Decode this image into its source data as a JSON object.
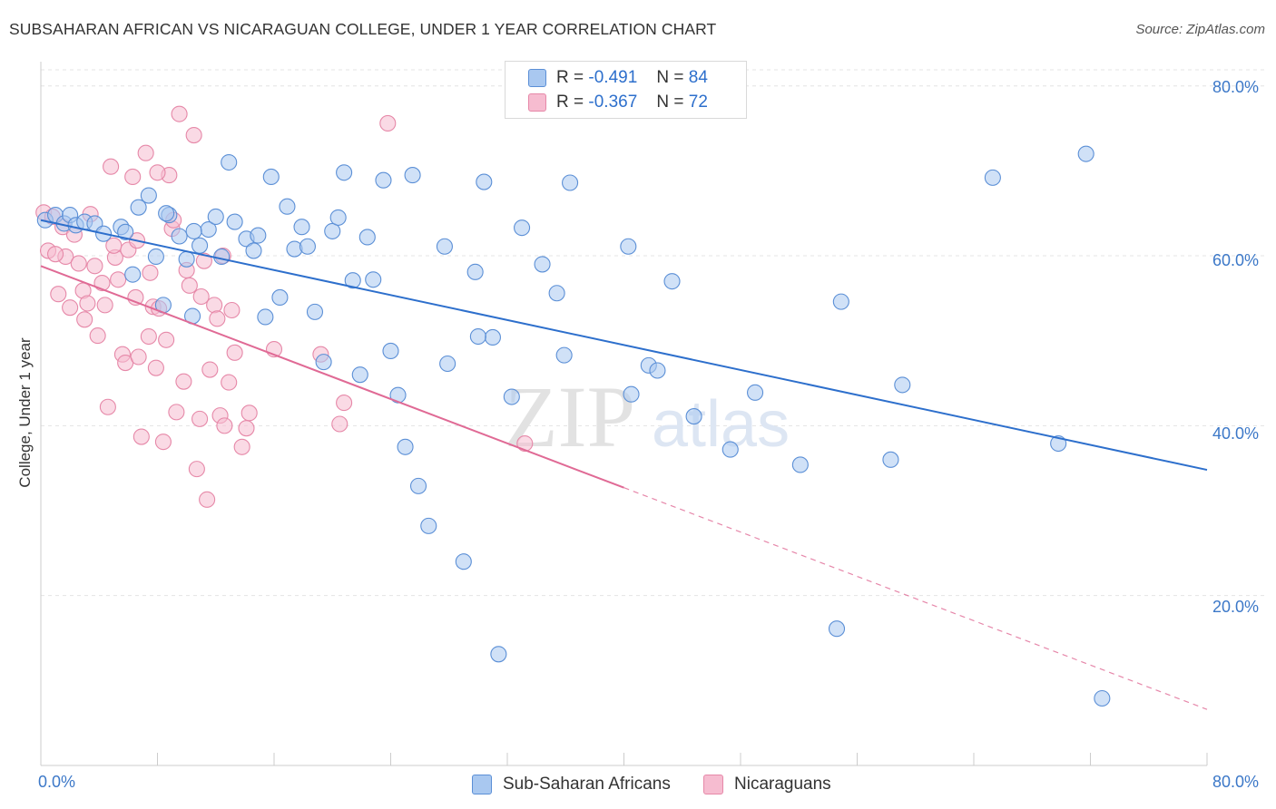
{
  "title": "SUBSAHARAN AFRICAN VS NICARAGUAN COLLEGE, UNDER 1 YEAR CORRELATION CHART",
  "source": "Source: ZipAtlas.com",
  "watermark": "ZIPatlas",
  "colors": {
    "blue_fill": "#a9c8f0",
    "blue_stroke": "#5b8fd6",
    "blue_line": "#2d6fcc",
    "pink_fill": "#f6bcd0",
    "pink_stroke": "#e688a8",
    "pink_line": "#e06a95",
    "axis_text": "#3c78c8"
  },
  "legend_top": {
    "rows": [
      {
        "r_label": "R =",
        "r_value": "-0.491",
        "n_label": "N =",
        "n_value": "84"
      },
      {
        "r_label": "R =",
        "r_value": "-0.367",
        "n_label": "N =",
        "n_value": "72"
      }
    ]
  },
  "legend_bottom": {
    "items": [
      "Sub-Saharan Africans",
      "Nicaraguans"
    ]
  },
  "axes": {
    "y_label": "College, Under 1 year",
    "x_min_label": "0.0%",
    "x_max_label": "80.0%",
    "y_ticks": [
      "80.0%",
      "60.0%",
      "40.0%",
      "20.0%"
    ]
  },
  "chart_data": {
    "type": "scatter",
    "title": "SUBSAHARAN AFRICAN VS NICARAGUAN COLLEGE, UNDER 1 YEAR CORRELATION CHART",
    "xlabel": "",
    "ylabel": "College, Under 1 year",
    "xlim": [
      0,
      80
    ],
    "ylim": [
      0,
      82
    ],
    "y_tick_values": [
      20,
      40,
      60,
      80
    ],
    "grid": true,
    "legend_position": "top-center",
    "series": [
      {
        "name": "Sub-Saharan Africans",
        "color": "blue",
        "R": -0.491,
        "N": 84,
        "trend": {
          "x0": 0,
          "y0": 64.2,
          "x1": 80,
          "y1": 34.8,
          "dashed_from": null
        },
        "points": [
          [
            0.3,
            64.2
          ],
          [
            1.0,
            64.8
          ],
          [
            1.6,
            63.8
          ],
          [
            2.0,
            64.8
          ],
          [
            2.4,
            63.6
          ],
          [
            3.0,
            64.0
          ],
          [
            3.7,
            63.8
          ],
          [
            4.3,
            62.6
          ],
          [
            5.5,
            63.4
          ],
          [
            5.8,
            62.8
          ],
          [
            6.3,
            57.8
          ],
          [
            6.7,
            65.7
          ],
          [
            7.4,
            67.1
          ],
          [
            7.9,
            59.9
          ],
          [
            8.4,
            54.2
          ],
          [
            8.8,
            64.8
          ],
          [
            9.5,
            62.3
          ],
          [
            10.0,
            59.6
          ],
          [
            10.4,
            52.9
          ],
          [
            10.9,
            61.2
          ],
          [
            11.5,
            63.1
          ],
          [
            12.0,
            64.6
          ],
          [
            12.4,
            59.9
          ],
          [
            12.9,
            71.0
          ],
          [
            13.3,
            64.0
          ],
          [
            14.1,
            62.0
          ],
          [
            14.6,
            60.6
          ],
          [
            14.9,
            62.4
          ],
          [
            15.4,
            52.8
          ],
          [
            15.8,
            69.3
          ],
          [
            16.4,
            55.1
          ],
          [
            16.9,
            65.8
          ],
          [
            17.4,
            60.8
          ],
          [
            17.9,
            63.4
          ],
          [
            18.3,
            61.1
          ],
          [
            18.8,
            53.4
          ],
          [
            19.4,
            47.5
          ],
          [
            20.0,
            62.9
          ],
          [
            20.4,
            64.5
          ],
          [
            20.8,
            69.8
          ],
          [
            21.4,
            57.1
          ],
          [
            21.9,
            46.0
          ],
          [
            22.4,
            62.2
          ],
          [
            22.8,
            57.2
          ],
          [
            23.5,
            68.9
          ],
          [
            24.0,
            48.8
          ],
          [
            24.5,
            43.6
          ],
          [
            25.0,
            37.5
          ],
          [
            25.5,
            69.5
          ],
          [
            25.9,
            32.9
          ],
          [
            26.6,
            28.2
          ],
          [
            27.7,
            61.1
          ],
          [
            27.9,
            47.3
          ],
          [
            29.0,
            24.0
          ],
          [
            29.8,
            58.1
          ],
          [
            30.4,
            68.7
          ],
          [
            31.0,
            50.4
          ],
          [
            31.4,
            13.1
          ],
          [
            32.3,
            43.4
          ],
          [
            33.0,
            63.3
          ],
          [
            34.4,
            59.0
          ],
          [
            35.4,
            55.6
          ],
          [
            35.9,
            48.3
          ],
          [
            36.3,
            68.6
          ],
          [
            40.3,
            61.1
          ],
          [
            40.5,
            43.7
          ],
          [
            41.7,
            47.1
          ],
          [
            42.3,
            46.5
          ],
          [
            43.3,
            57.0
          ],
          [
            44.8,
            41.1
          ],
          [
            47.3,
            37.2
          ],
          [
            49.0,
            43.9
          ],
          [
            52.1,
            35.4
          ],
          [
            54.6,
            16.1
          ],
          [
            54.9,
            54.6
          ],
          [
            58.3,
            36.0
          ],
          [
            59.1,
            44.8
          ],
          [
            65.3,
            69.2
          ],
          [
            71.7,
            72.0
          ],
          [
            69.8,
            37.9
          ],
          [
            72.8,
            7.9
          ],
          [
            8.6,
            65.0
          ],
          [
            10.5,
            62.9
          ],
          [
            30.0,
            50.5
          ]
        ]
      },
      {
        "name": "Nicaraguans",
        "color": "pink",
        "R": -0.367,
        "N": 72,
        "trend": {
          "x0": 0,
          "y0": 58.8,
          "x1": 80,
          "y1": 6.6,
          "solid_until_x": 40.0
        },
        "points": [
          [
            0.2,
            65.1
          ],
          [
            0.5,
            60.6
          ],
          [
            0.8,
            64.6
          ],
          [
            1.2,
            55.5
          ],
          [
            1.5,
            63.4
          ],
          [
            1.7,
            59.9
          ],
          [
            2.0,
            53.9
          ],
          [
            2.3,
            62.5
          ],
          [
            2.6,
            59.1
          ],
          [
            2.9,
            55.9
          ],
          [
            3.2,
            54.4
          ],
          [
            3.4,
            64.9
          ],
          [
            3.7,
            58.8
          ],
          [
            3.9,
            50.6
          ],
          [
            4.2,
            56.8
          ],
          [
            4.4,
            54.2
          ],
          [
            4.6,
            42.2
          ],
          [
            4.8,
            70.5
          ],
          [
            5.1,
            59.8
          ],
          [
            5.3,
            57.2
          ],
          [
            5.6,
            48.4
          ],
          [
            5.8,
            47.4
          ],
          [
            6.0,
            60.7
          ],
          [
            6.3,
            69.3
          ],
          [
            6.5,
            55.1
          ],
          [
            6.7,
            48.1
          ],
          [
            6.9,
            38.7
          ],
          [
            7.2,
            72.1
          ],
          [
            7.4,
            50.5
          ],
          [
            7.7,
            54.0
          ],
          [
            7.9,
            46.8
          ],
          [
            8.1,
            53.8
          ],
          [
            8.4,
            38.1
          ],
          [
            8.6,
            50.1
          ],
          [
            8.8,
            69.5
          ],
          [
            9.0,
            63.2
          ],
          [
            9.3,
            41.6
          ],
          [
            9.5,
            76.7
          ],
          [
            9.8,
            45.2
          ],
          [
            10.0,
            58.3
          ],
          [
            10.2,
            56.5
          ],
          [
            10.5,
            74.2
          ],
          [
            10.7,
            34.9
          ],
          [
            10.9,
            40.8
          ],
          [
            11.2,
            59.4
          ],
          [
            11.4,
            31.3
          ],
          [
            11.6,
            46.6
          ],
          [
            11.9,
            54.2
          ],
          [
            12.1,
            52.6
          ],
          [
            12.3,
            41.2
          ],
          [
            12.6,
            40.0
          ],
          [
            12.9,
            45.1
          ],
          [
            13.1,
            53.6
          ],
          [
            13.3,
            48.6
          ],
          [
            13.8,
            37.5
          ],
          [
            14.1,
            39.7
          ],
          [
            14.3,
            41.5
          ],
          [
            16.0,
            49.0
          ],
          [
            19.2,
            48.4
          ],
          [
            20.5,
            40.2
          ],
          [
            20.8,
            42.7
          ],
          [
            23.8,
            75.6
          ],
          [
            33.2,
            37.9
          ],
          [
            3.0,
            52.5
          ],
          [
            5.0,
            61.2
          ],
          [
            6.6,
            61.8
          ],
          [
            8.0,
            69.8
          ],
          [
            9.1,
            64.2
          ],
          [
            11.0,
            55.2
          ],
          [
            12.5,
            60.0
          ],
          [
            7.5,
            58.0
          ],
          [
            1.0,
            60.2
          ]
        ]
      }
    ]
  }
}
